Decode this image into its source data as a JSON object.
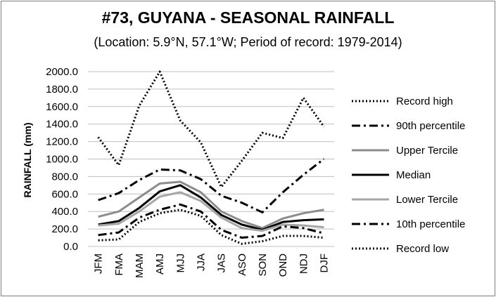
{
  "chart_data": {
    "type": "line",
    "title": "#73, GUYANA - SEASONAL RAINFALL",
    "subtitle": "(Location: 5.9°N, 57.1°W; Period of record: 1979-2014)",
    "xlabel": "",
    "ylabel": "RAINFALL (mm)",
    "ylim": [
      0,
      2000
    ],
    "yticks": [
      "0.0",
      "200.0",
      "400.0",
      "600.0",
      "800.0",
      "1000.0",
      "1200.0",
      "1400.0",
      "1600.0",
      "1800.0",
      "2000.0"
    ],
    "grid": "horizontal",
    "legend_position": "right",
    "categories": [
      "JFM",
      "FMA",
      "MAM",
      "AMJ",
      "MJJ",
      "JJA",
      "JAS",
      "ASO",
      "SON",
      "OND",
      "NDJ",
      "DJF"
    ],
    "series": [
      {
        "name": "Record high",
        "color": "#000000",
        "style": "dotted",
        "values": [
          1250,
          930,
          1610,
          2000,
          1440,
          1190,
          680,
          980,
          1300,
          1240,
          1700,
          1370
        ]
      },
      {
        "name": "90th percentile",
        "color": "#000000",
        "style": "dashdot",
        "values": [
          530,
          610,
          760,
          880,
          870,
          770,
          580,
          500,
          390,
          620,
          820,
          1000
        ]
      },
      {
        "name": "Upper Tercile",
        "color": "#8c8c8c",
        "style": "solid",
        "values": [
          340,
          400,
          560,
          720,
          740,
          620,
          400,
          290,
          210,
          320,
          380,
          420
        ]
      },
      {
        "name": "Median",
        "color": "#000000",
        "style": "solid",
        "values": [
          250,
          290,
          440,
          630,
          700,
          560,
          360,
          250,
          190,
          280,
          300,
          310
        ]
      },
      {
        "name": "Lower Tercile",
        "color": "#a6a6a6",
        "style": "solid",
        "values": [
          240,
          260,
          400,
          570,
          620,
          520,
          330,
          210,
          180,
          250,
          240,
          220
        ]
      },
      {
        "name": "10th percentile",
        "color": "#000000",
        "style": "dashdot",
        "values": [
          130,
          160,
          330,
          420,
          480,
          400,
          190,
          100,
          120,
          230,
          210,
          150
        ]
      },
      {
        "name": "Record low",
        "color": "#000000",
        "style": "dotted",
        "values": [
          70,
          80,
          280,
          380,
          420,
          350,
          130,
          30,
          60,
          120,
          120,
          100
        ]
      }
    ]
  }
}
